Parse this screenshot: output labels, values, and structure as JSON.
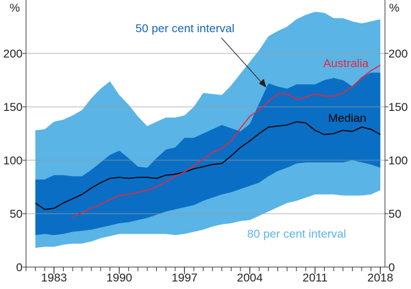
{
  "chart_data": {
    "type": "area",
    "title": "",
    "xlabel": "",
    "ylabel": "%",
    "ylabel_right": "%",
    "ylim": [
      0,
      250
    ],
    "xlim": [
      1980,
      2018.5
    ],
    "yticks": [
      0,
      50,
      100,
      150,
      200
    ],
    "xticks": [
      1983,
      1990,
      1997,
      2004,
      2011,
      2018
    ],
    "x": [
      1981,
      1982,
      1983,
      1984,
      1985,
      1986,
      1987,
      1988,
      1989,
      1990,
      1991,
      1992,
      1993,
      1994,
      1995,
      1996,
      1997,
      1998,
      1999,
      2000,
      2001,
      2002,
      2003,
      2004,
      2005,
      2006,
      2007,
      2008,
      2009,
      2010,
      2011,
      2012,
      2013,
      2014,
      2015,
      2016,
      2017,
      2018
    ],
    "series": [
      {
        "name": "80 per cent interval (lower)",
        "values": [
          18,
          19,
          19,
          21,
          22,
          22,
          24,
          27,
          29,
          31,
          31,
          31,
          31,
          31,
          31,
          30,
          31,
          33,
          35,
          38,
          40,
          41,
          43,
          44,
          48,
          52,
          56,
          60,
          62,
          65,
          68,
          68,
          68,
          67,
          67,
          67,
          68,
          72
        ]
      },
      {
        "name": "50 per cent interval (lower)",
        "values": [
          30,
          31,
          30,
          31,
          33,
          34,
          35,
          37,
          39,
          41,
          42,
          44,
          46,
          49,
          52,
          54,
          56,
          58,
          62,
          65,
          68,
          70,
          73,
          76,
          79,
          85,
          90,
          93,
          97,
          98,
          98,
          98,
          98,
          98,
          100,
          98,
          96,
          93
        ]
      },
      {
        "name": "50 per cent interval (upper)",
        "values": [
          82,
          82,
          86,
          86,
          85,
          85,
          91,
          98,
          105,
          109,
          102,
          94,
          93,
          102,
          110,
          112,
          121,
          121,
          125,
          129,
          133,
          130,
          127,
          134,
          153,
          172,
          169,
          167,
          171,
          171,
          171,
          175,
          177,
          175,
          169,
          178,
          182,
          182
        ]
      },
      {
        "name": "80 per cent interval (upper)",
        "values": [
          128,
          129,
          136,
          138,
          142,
          147,
          158,
          167,
          174,
          161,
          152,
          141,
          132,
          136,
          140,
          140,
          142,
          150,
          163,
          162,
          161,
          170,
          181,
          192,
          203,
          216,
          221,
          225,
          232,
          236,
          239,
          238,
          233,
          233,
          230,
          228,
          230,
          232
        ]
      },
      {
        "name": "Median",
        "values": [
          60,
          54,
          55,
          60,
          64,
          68,
          74,
          79,
          83,
          84,
          83,
          84,
          84,
          83,
          86,
          87,
          89,
          92,
          94,
          96,
          97,
          104,
          112,
          118,
          125,
          131,
          132,
          133,
          136,
          135,
          128,
          124,
          125,
          128,
          127,
          131,
          129,
          124
        ]
      },
      {
        "name": "Australia",
        "values": [
          null,
          null,
          null,
          null,
          47,
          51,
          55,
          59,
          63,
          67,
          68,
          70,
          72,
          75,
          80,
          85,
          89,
          95,
          101,
          107,
          111,
          118,
          130,
          141,
          147,
          155,
          162,
          162,
          157,
          159,
          162,
          160,
          160,
          163,
          169,
          177,
          184,
          189
        ]
      }
    ],
    "annotations": {
      "label_50": "50 per cent interval",
      "label_80": "80 per cent interval",
      "label_median": "Median",
      "label_australia": "Australia"
    },
    "colors": {
      "band_80": "#5ab4e5",
      "band_50": "#0a6fc4",
      "median": "#000000",
      "australia": "#e8263f",
      "label_50": "#1565b8",
      "label_80": "#5ab4e5"
    }
  }
}
